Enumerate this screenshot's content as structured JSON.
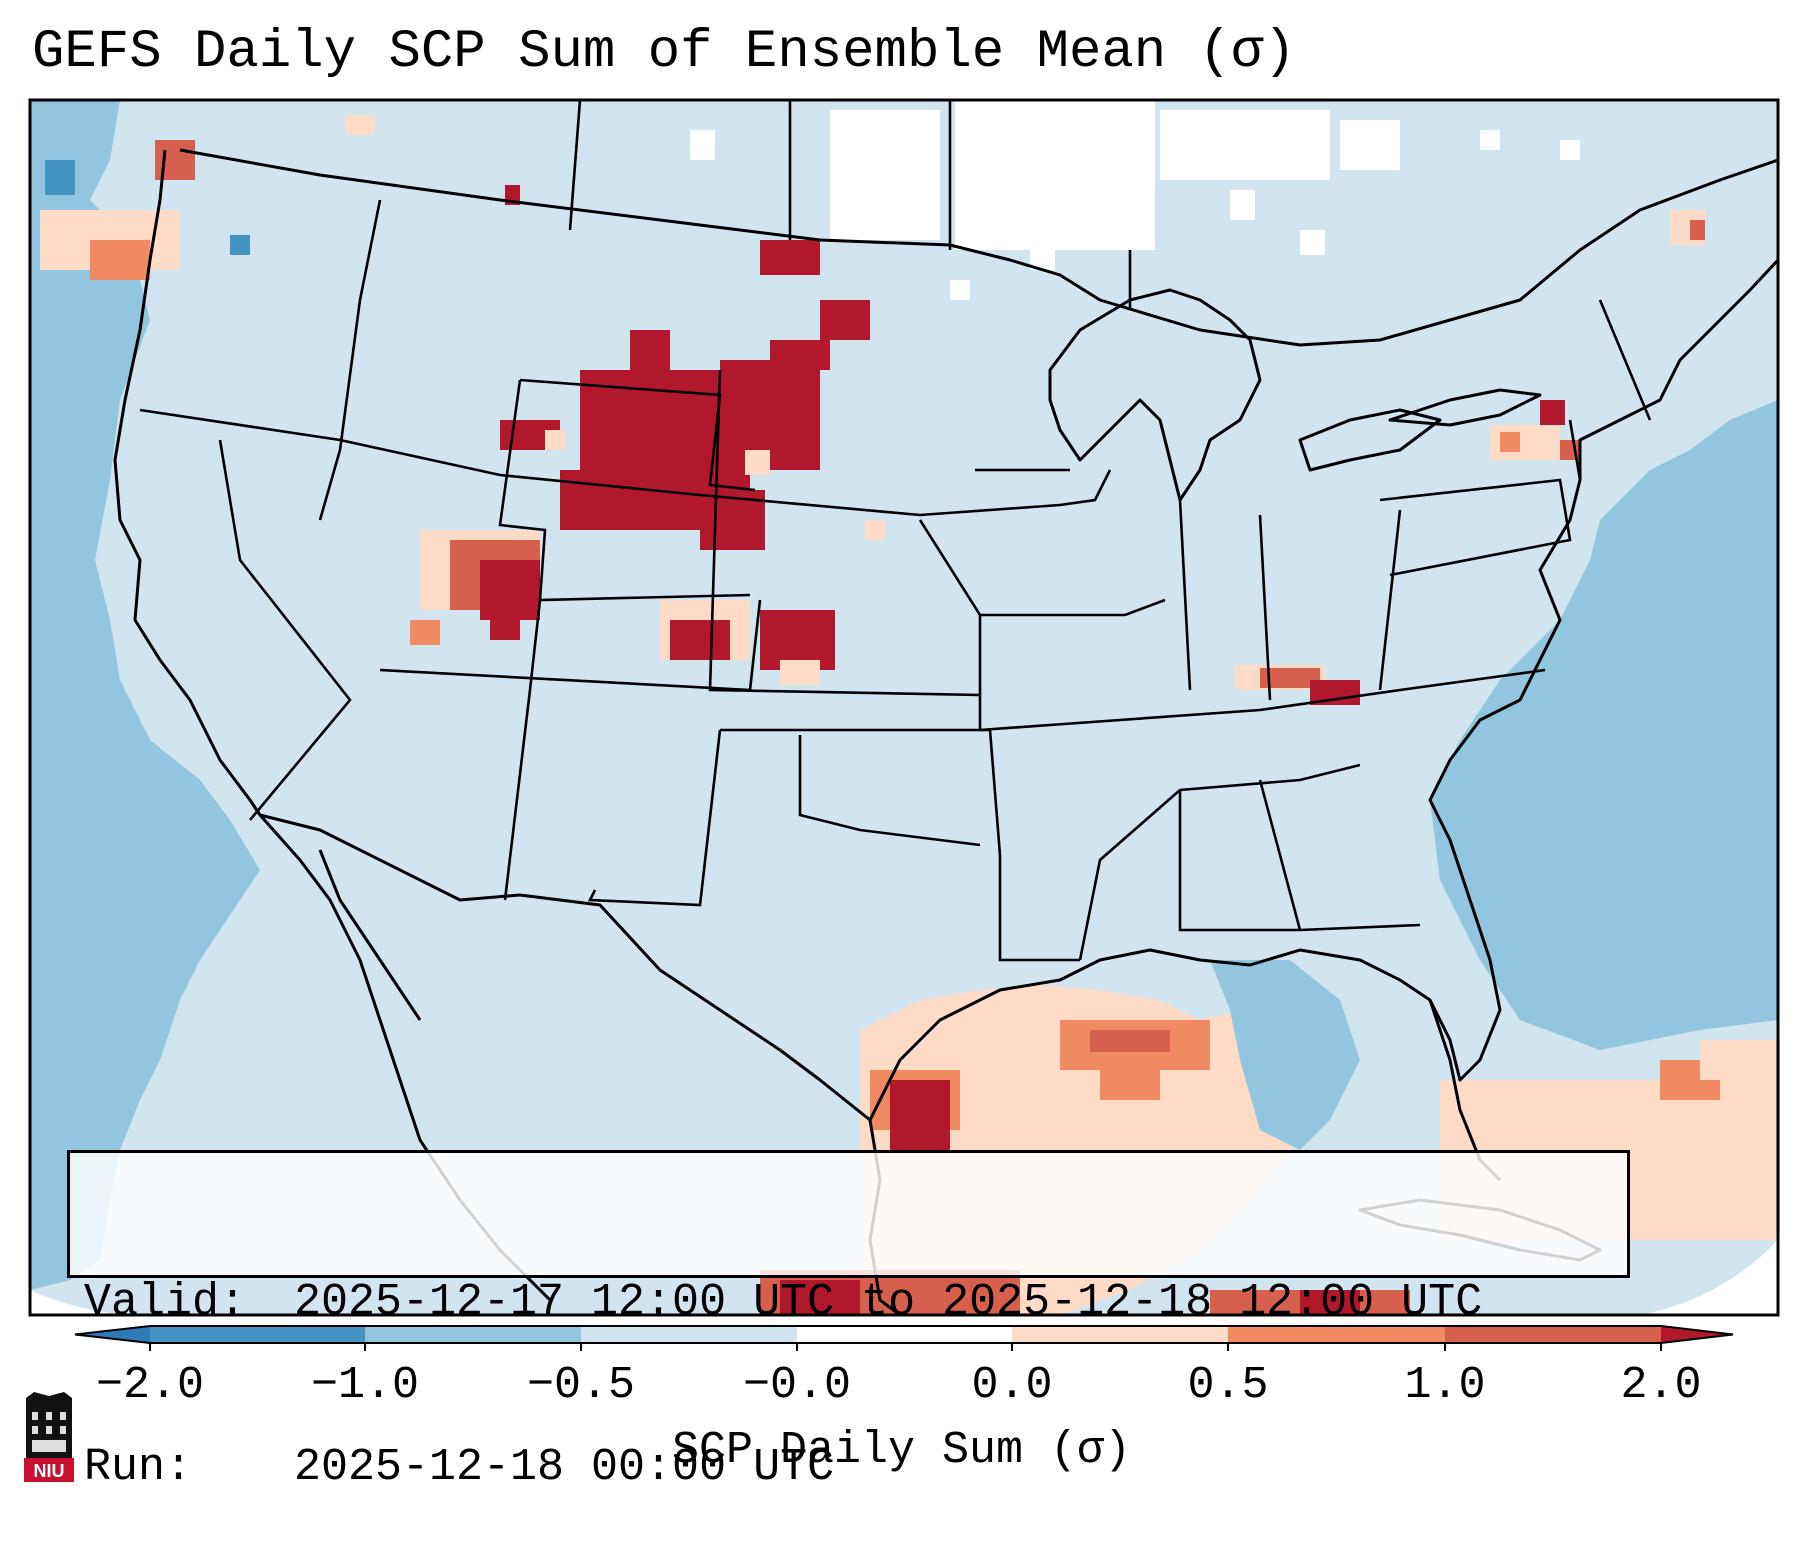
{
  "title": "GEFS Daily SCP Sum of Ensemble Mean (σ)",
  "info_box": {
    "valid_label": "Valid:",
    "valid_value": "2025-12-17 12:00 UTC to 2025-12-18 12:00 UTC",
    "run_label": "Run:",
    "run_value": "2025-12-18 00:00 UTC"
  },
  "colorbar": {
    "label": "SCP Daily Sum (σ)",
    "ticks": [
      "−2.0",
      "−1.0",
      "−0.5",
      "−0.0",
      "0.0",
      "0.5",
      "1.0",
      "2.0"
    ],
    "bins": [
      {
        "range": "below -2.0",
        "color": "#2c7bb6"
      },
      {
        "range": "-2.0 to -1.0",
        "color": "#4393c3"
      },
      {
        "range": "-1.0 to -0.5",
        "color": "#92c5de"
      },
      {
        "range": "-0.5 to -0.0",
        "color": "#d1e5f0"
      },
      {
        "range": "-0.0 to 0.0",
        "color": "#ffffff"
      },
      {
        "range": "0.0 to 0.5",
        "color": "#fddbc7"
      },
      {
        "range": "0.5 to 1.0",
        "color": "#ef8a62"
      },
      {
        "range": "1.0 to 2.0",
        "color": "#d6604d"
      },
      {
        "range": "above 2.0",
        "color": "#b2182b"
      }
    ]
  },
  "map_regions": [
    {
      "name": "northern-plains-max",
      "level": "above 2.0"
    },
    {
      "name": "central-plains-max",
      "level": "above 2.0"
    },
    {
      "name": "utah-colorado",
      "level": "1.0 to 2.0"
    },
    {
      "name": "kansas",
      "level": "above 2.0"
    },
    {
      "name": "kentucky-virginia",
      "level": "1.0 to 2.0"
    },
    {
      "name": "new-york",
      "level": "1.0 to 2.0"
    },
    {
      "name": "gulf-of-mexico",
      "level": "0.0 to 0.5"
    },
    {
      "name": "mexico-gulf-coast",
      "level": "above 2.0"
    },
    {
      "name": "atlantic-ocean",
      "level": "-1.0 to -0.5"
    },
    {
      "name": "pacific-ocean",
      "level": "-1.0 to -0.5"
    }
  ],
  "logo": {
    "text": "NIU"
  }
}
